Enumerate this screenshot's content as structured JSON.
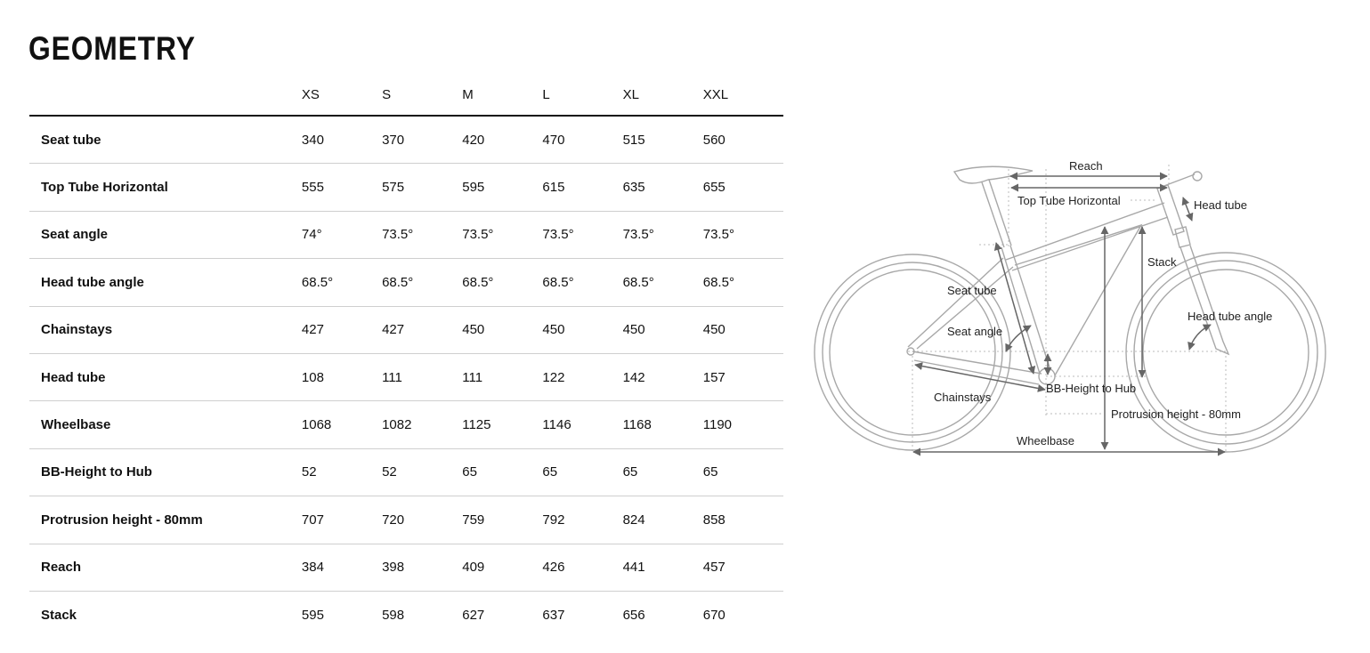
{
  "title": "GEOMETRY",
  "sizes": [
    "XS",
    "S",
    "M",
    "L",
    "XL",
    "XXL"
  ],
  "rows": [
    {
      "label": "Seat tube",
      "values": [
        "340",
        "370",
        "420",
        "470",
        "515",
        "560"
      ]
    },
    {
      "label": "Top Tube Horizontal",
      "values": [
        "555",
        "575",
        "595",
        "615",
        "635",
        "655"
      ]
    },
    {
      "label": "Seat angle",
      "values": [
        "74°",
        "73.5°",
        "73.5°",
        "73.5°",
        "73.5°",
        "73.5°"
      ]
    },
    {
      "label": "Head tube angle",
      "values": [
        "68.5°",
        "68.5°",
        "68.5°",
        "68.5°",
        "68.5°",
        "68.5°"
      ]
    },
    {
      "label": "Chainstays",
      "values": [
        "427",
        "427",
        "450",
        "450",
        "450",
        "450"
      ]
    },
    {
      "label": "Head tube",
      "values": [
        "108",
        "111",
        "111",
        "122",
        "142",
        "157"
      ]
    },
    {
      "label": "Wheelbase",
      "values": [
        "1068",
        "1082",
        "1125",
        "1146",
        "1168",
        "1190"
      ]
    },
    {
      "label": "BB-Height to Hub",
      "values": [
        "52",
        "52",
        "65",
        "65",
        "65",
        "65"
      ]
    },
    {
      "label": "Protrusion height - 80mm",
      "values": [
        "707",
        "720",
        "759",
        "792",
        "824",
        "858"
      ]
    },
    {
      "label": "Reach",
      "values": [
        "384",
        "398",
        "409",
        "426",
        "441",
        "457"
      ]
    },
    {
      "label": "Stack",
      "values": [
        "595",
        "598",
        "627",
        "637",
        "656",
        "670"
      ]
    }
  ],
  "diagram": {
    "labels": {
      "reach": "Reach",
      "top_tube": "Top Tube Horizontal",
      "head_tube": "Head tube",
      "stack": "Stack",
      "seat_tube": "Seat tube",
      "seat_angle": "Seat angle",
      "head_tube_angle": "Head tube angle",
      "chainstays": "Chainstays",
      "bb_height": "BB-Height to Hub",
      "protrusion": "Protrusion height - 80mm",
      "wheelbase": "Wheelbase"
    }
  }
}
